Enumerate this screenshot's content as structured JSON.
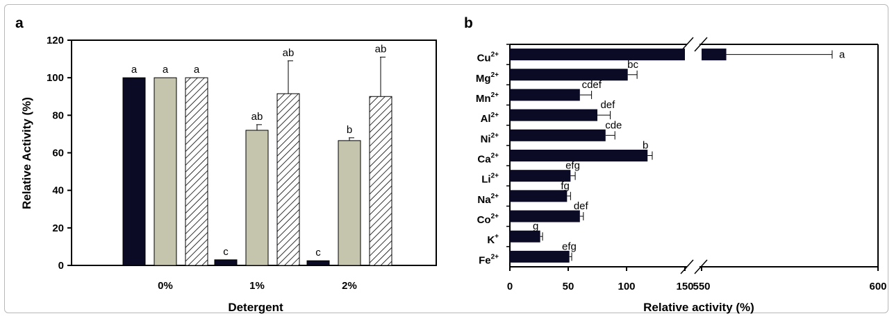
{
  "chart_data": [
    {
      "panel": "a",
      "type": "bar",
      "orientation": "vertical",
      "xlabel": "Detergent",
      "ylabel": "Relative Activity (%)",
      "ylim": [
        0,
        120
      ],
      "yticks": [
        0,
        20,
        40,
        60,
        80,
        100,
        120
      ],
      "categories": [
        "0%",
        "1%",
        "2%"
      ],
      "series": [
        {
          "fill": "solid",
          "color": "#0b0b26",
          "values": [
            100,
            3,
            2.5
          ],
          "errors": [
            0,
            0,
            0
          ],
          "labels": [
            "a",
            "c",
            "c"
          ]
        },
        {
          "fill": "solid",
          "color": "#c5c4ac",
          "values": [
            100,
            72,
            66.5
          ],
          "errors": [
            0,
            3,
            1.5
          ],
          "labels": [
            "a",
            "ab",
            "b"
          ]
        },
        {
          "fill": "hatched",
          "color": "#ffffff",
          "values": [
            100,
            91.5,
            90
          ],
          "errors": [
            0,
            17.5,
            21
          ],
          "labels": [
            "a",
            "ab",
            "ab"
          ]
        }
      ],
      "grid": false,
      "legend": "none"
    },
    {
      "panel": "b",
      "type": "bar",
      "orientation": "horizontal",
      "xlabel": "Relative activity (%)",
      "xticks": [
        "0",
        "50",
        "100",
        "150",
        "550",
        "600"
      ],
      "axis_break": {
        "lower": [
          0,
          150
        ],
        "upper": [
          550,
          600
        ]
      },
      "categories": [
        {
          "ion": "Cu",
          "charge": "2+"
        },
        {
          "ion": "Mg",
          "charge": "2+"
        },
        {
          "ion": "Mn",
          "charge": "2+"
        },
        {
          "ion": "Al",
          "charge": "2+"
        },
        {
          "ion": "Ni",
          "charge": "2+"
        },
        {
          "ion": "Ca",
          "charge": "2+"
        },
        {
          "ion": "Li",
          "charge": "2+"
        },
        {
          "ion": "Na",
          "charge": "2+"
        },
        {
          "ion": "Co",
          "charge": "2+"
        },
        {
          "ion": "K",
          "charge": "+"
        },
        {
          "ion": "Fe",
          "charge": "2+"
        }
      ],
      "values": [
        557,
        101,
        60,
        75,
        82,
        118,
        52,
        49,
        60,
        26,
        51
      ],
      "errors": [
        30,
        8,
        10,
        11,
        8,
        4,
        4,
        3,
        3,
        2,
        2
      ],
      "labels": [
        "a",
        "bc",
        "cdef",
        "def",
        "cde",
        "b",
        "efg",
        "fg",
        "def",
        "g",
        "efg"
      ],
      "color": "#0b0b26",
      "grid": false,
      "legend": "none"
    }
  ]
}
